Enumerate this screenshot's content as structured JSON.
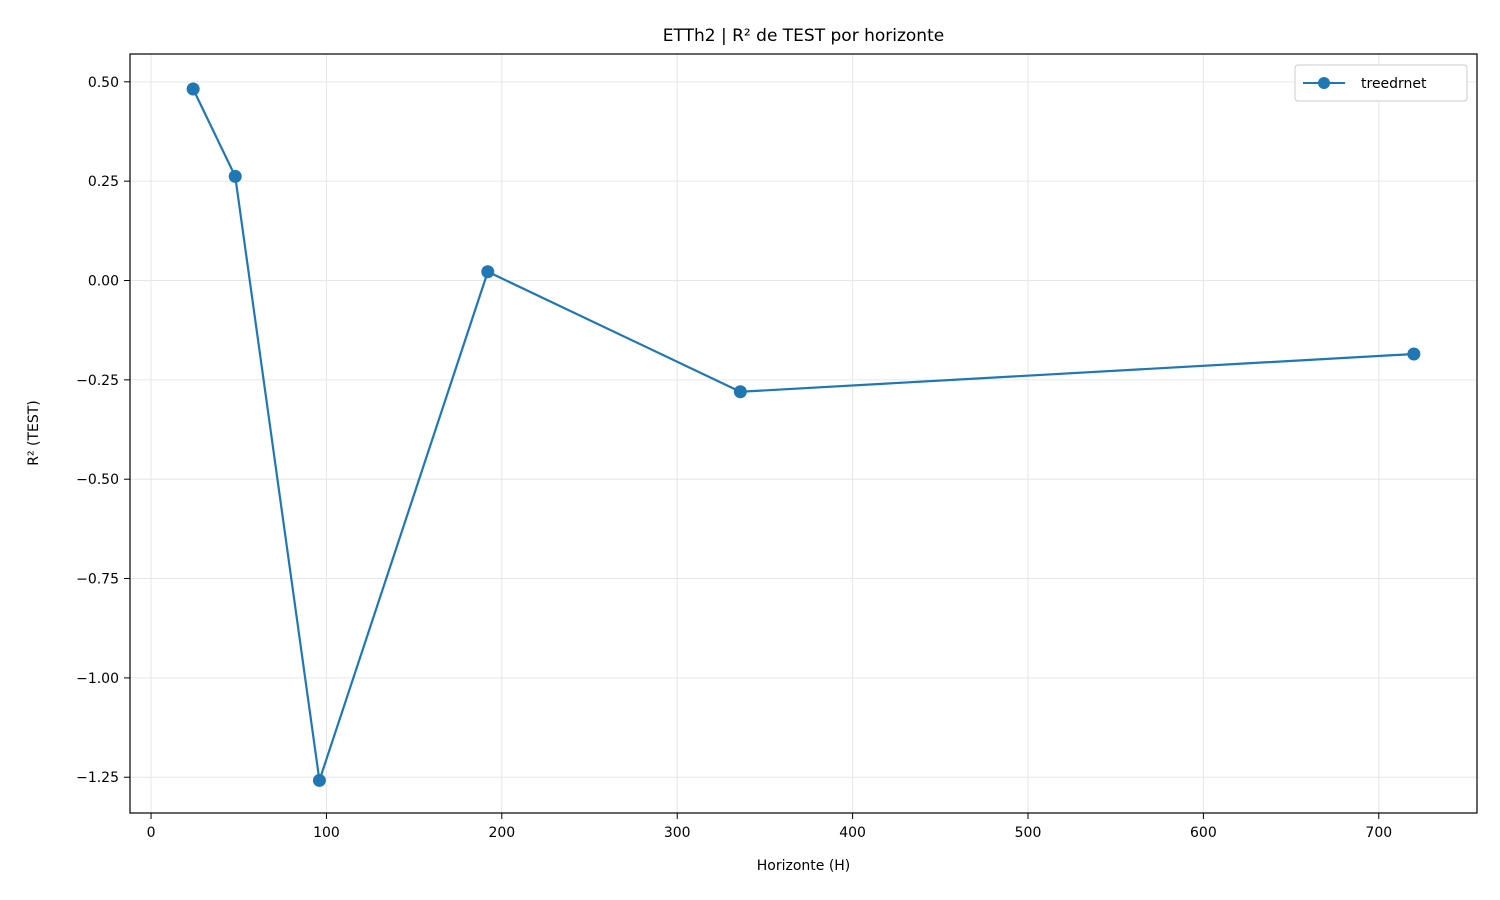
{
  "chart_data": {
    "type": "line",
    "title": "ETTh2 | R² de TEST por horizonte",
    "xlabel": "Horizonte (H)",
    "ylabel": "R² (TEST)",
    "xlim": [
      -12,
      756
    ],
    "ylim": [
      -1.34,
      0.57
    ],
    "xticks": [
      0,
      100,
      200,
      300,
      400,
      500,
      600,
      700
    ],
    "xtick_labels": [
      "0",
      "100",
      "200",
      "300",
      "400",
      "500",
      "600",
      "700"
    ],
    "yticks": [
      0.5,
      0.25,
      0.0,
      -0.25,
      -0.5,
      -0.75,
      -1.0,
      -1.25
    ],
    "ytick_labels": [
      "0.50",
      "0.25",
      "0.00",
      "−0.25",
      "−0.50",
      "−0.75",
      "−1.00",
      "−1.25"
    ],
    "grid": true,
    "legend_position": "top-right",
    "series": [
      {
        "name": "treedrnet",
        "color": "#1f77b4",
        "marker": "circle",
        "x": [
          24,
          48,
          96,
          192,
          336,
          720
        ],
        "y": [
          0.482,
          0.262,
          -1.258,
          0.022,
          -0.28,
          -0.185
        ]
      }
    ]
  }
}
